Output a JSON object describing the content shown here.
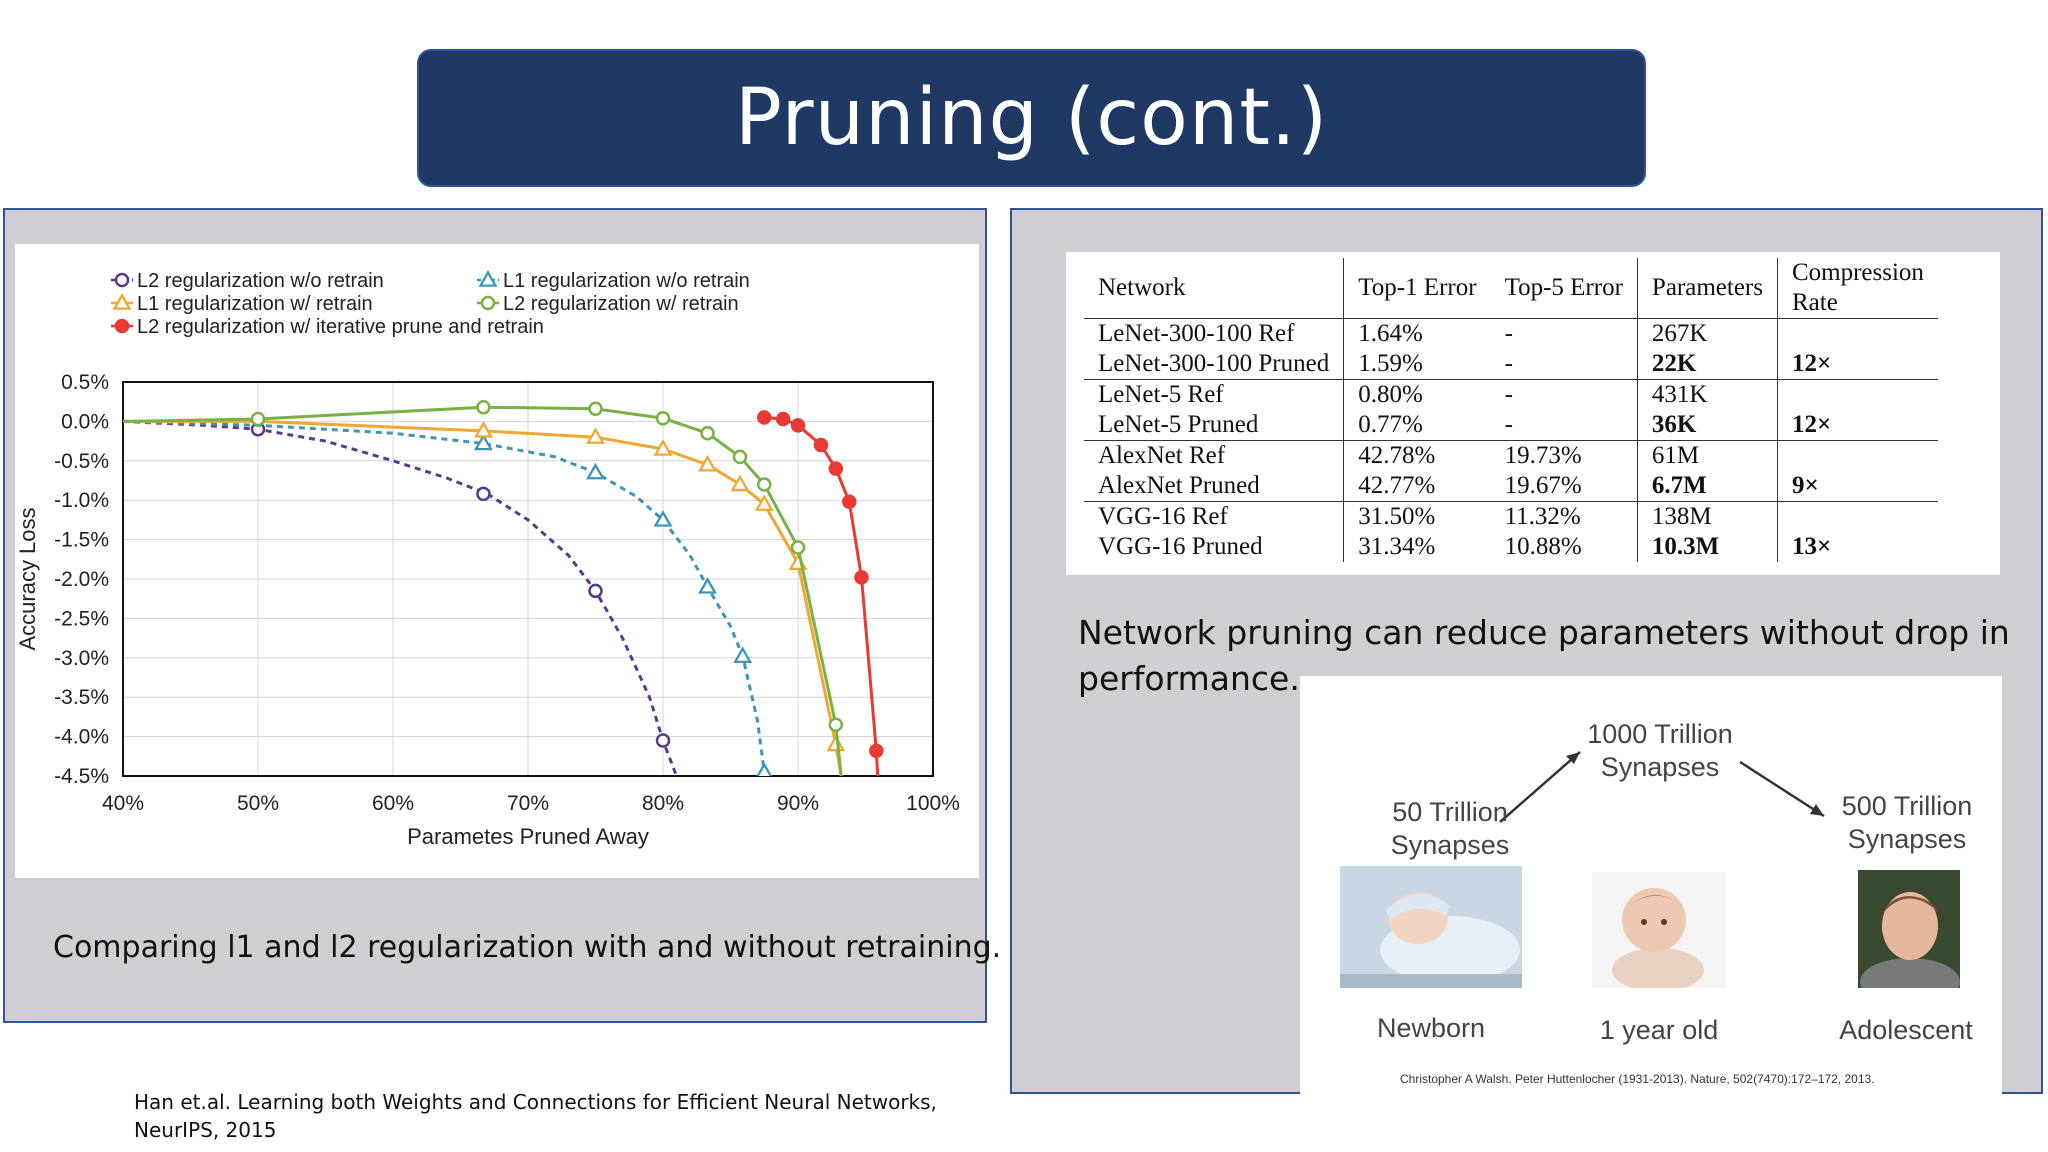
{
  "slide": {
    "title": "Pruning (cont.)",
    "footnote_line1": "Han et.al. Learning both Weights and Connections for Efficient Neural Networks,",
    "footnote_line2": "NeurIPS, 2015"
  },
  "left_panel": {
    "caption": "Comparing l1 and l2 regularization with and without retraining."
  },
  "chart_data": {
    "type": "line",
    "title": "",
    "xlabel": "Parametes Pruned Away",
    "ylabel": "Accuracy Loss",
    "xlim": [
      40,
      100
    ],
    "ylim": [
      -4.5,
      0.5
    ],
    "xticks": [
      40,
      50,
      60,
      70,
      80,
      90,
      100
    ],
    "xtick_labels": [
      "40%",
      "50%",
      "60%",
      "70%",
      "80%",
      "90%",
      "100%"
    ],
    "yticks": [
      0.5,
      0.0,
      -0.5,
      -1.0,
      -1.5,
      -2.0,
      -2.5,
      -3.0,
      -3.5,
      -4.0,
      -4.5
    ],
    "ytick_labels": [
      "0.5%",
      "0.0%",
      "-0.5%",
      "-1.0%",
      "-1.5%",
      "-2.0%",
      "-2.5%",
      "-3.0%",
      "-3.5%",
      "-4.0%",
      "-4.5%"
    ],
    "grid": true,
    "legend_placement": "top",
    "series": [
      {
        "name": "L2 regularization w/o retrain",
        "color": "#5b3a8a",
        "style": "dashed",
        "marker": "circle-open",
        "line_x": [
          40,
          46,
          50,
          55,
          60,
          64,
          67,
          70,
          73,
          75,
          77,
          79,
          80,
          81
        ],
        "line_y": [
          0.0,
          -0.05,
          -0.1,
          -0.25,
          -0.5,
          -0.72,
          -0.92,
          -1.25,
          -1.7,
          -2.15,
          -2.75,
          -3.5,
          -4.05,
          -4.5
        ],
        "marker_x": [
          50,
          66.7,
          75,
          80
        ],
        "marker_y": [
          -0.1,
          -0.92,
          -2.15,
          -4.05
        ]
      },
      {
        "name": "L1 regularization w/o retrain",
        "color": "#3d95b8",
        "style": "dashed",
        "marker": "triangle-open",
        "line_x": [
          40,
          50,
          60,
          66.7,
          72,
          75,
          78,
          80,
          82,
          83.3,
          85,
          85.9,
          87,
          87.5
        ],
        "line_y": [
          0.0,
          -0.05,
          -0.15,
          -0.28,
          -0.45,
          -0.65,
          -0.95,
          -1.25,
          -1.7,
          -2.1,
          -2.6,
          -2.98,
          -3.8,
          -4.45
        ],
        "marker_x": [
          66.7,
          75,
          80,
          83.3,
          85.9,
          87.5
        ],
        "marker_y": [
          -0.28,
          -0.65,
          -1.25,
          -2.1,
          -2.98,
          -4.45
        ]
      },
      {
        "name": "L1 regularization w/ retrain",
        "color": "#f0a830",
        "style": "solid",
        "marker": "triangle-open",
        "line_x": [
          40,
          50,
          66.7,
          75,
          80,
          83.3,
          85.7,
          87.5,
          90,
          92.8,
          93.2
        ],
        "line_y": [
          0.0,
          0.0,
          -0.12,
          -0.2,
          -0.35,
          -0.55,
          -0.8,
          -1.05,
          -1.8,
          -4.1,
          -4.5
        ],
        "marker_x": [
          66.7,
          75,
          80,
          83.3,
          85.7,
          87.5,
          90,
          92.8
        ],
        "marker_y": [
          -0.12,
          -0.2,
          -0.35,
          -0.55,
          -0.8,
          -1.05,
          -1.8,
          -4.1
        ]
      },
      {
        "name": "L2 regularization w/ retrain",
        "color": "#77b243",
        "style": "solid",
        "marker": "circle-open",
        "line_x": [
          40,
          50,
          66.7,
          75,
          80,
          83.3,
          85.7,
          87.5,
          90,
          92.8,
          93.2
        ],
        "line_y": [
          0.0,
          0.03,
          0.18,
          0.16,
          0.04,
          -0.15,
          -0.45,
          -0.8,
          -1.6,
          -3.85,
          -4.5
        ],
        "marker_x": [
          50,
          66.7,
          75,
          80,
          83.3,
          85.7,
          87.5,
          90,
          92.8
        ],
        "marker_y": [
          0.03,
          0.18,
          0.16,
          0.04,
          -0.15,
          -0.45,
          -0.8,
          -1.6,
          -3.85
        ]
      },
      {
        "name": "L2 regularization w/ iterative prune and retrain",
        "color": "#e83a32",
        "style": "solid",
        "marker": "circle-filled",
        "line_x": [
          87.5,
          88.9,
          90,
          91.7,
          92.8,
          93.8,
          94.7,
          95.8,
          95.9
        ],
        "line_y": [
          0.05,
          0.03,
          -0.05,
          -0.3,
          -0.6,
          -1.02,
          -1.98,
          -4.18,
          -4.5
        ],
        "marker_x": [
          87.5,
          88.9,
          90,
          91.7,
          92.8,
          93.8,
          94.7,
          95.8
        ],
        "marker_y": [
          0.05,
          0.03,
          -0.05,
          -0.3,
          -0.6,
          -1.02,
          -1.98,
          -4.18
        ]
      }
    ]
  },
  "right_panel": {
    "description": "Network pruning can reduce parameters without drop in performance.",
    "table": {
      "headers": {
        "network": "Network",
        "top1": "Top-1 Error",
        "top5": "Top-5 Error",
        "params": "Parameters",
        "compression_line1": "Compression",
        "compression_line2": "Rate"
      },
      "rows": [
        {
          "network": "LeNet-300-100 Ref",
          "top1": "1.64%",
          "top5": "-",
          "params": "267K",
          "compression": ""
        },
        {
          "network": "LeNet-300-100 Pruned",
          "top1": "1.59%",
          "top5": "-",
          "params": "22K",
          "compression": "12×"
        },
        {
          "network": "LeNet-5 Ref",
          "top1": "0.80%",
          "top5": "-",
          "params": "431K",
          "compression": ""
        },
        {
          "network": "LeNet-5 Pruned",
          "top1": "0.77%",
          "top5": "-",
          "params": "36K",
          "compression": "12×"
        },
        {
          "network": "AlexNet Ref",
          "top1": "42.78%",
          "top5": "19.73%",
          "params": "61M",
          "compression": ""
        },
        {
          "network": "AlexNet Pruned",
          "top1": "42.77%",
          "top5": "19.67%",
          "params": "6.7M",
          "compression": "9×"
        },
        {
          "network": "VGG-16 Ref",
          "top1": "31.50%",
          "top5": "11.32%",
          "params": "138M",
          "compression": ""
        },
        {
          "network": "VGG-16 Pruned",
          "top1": "31.34%",
          "top5": "10.88%",
          "params": "10.3M",
          "compression": "13×"
        }
      ]
    },
    "synapses_figure": {
      "newborn_count_line1": "50 Trillion",
      "newborn_count_line2": "Synapses",
      "one_year_count_line1": "1000 Trillion",
      "one_year_count_line2": "Synapses",
      "adolescent_count_line1": "500 Trillion",
      "adolescent_count_line2": "Synapses",
      "newborn_label": "Newborn",
      "one_year_label": "1 year old",
      "adolescent_label": "Adolescent",
      "credit": "Christopher A Walsh. Peter Huttenlocher (1931-2013). Nature, 502(7470):172–172, 2013."
    }
  }
}
